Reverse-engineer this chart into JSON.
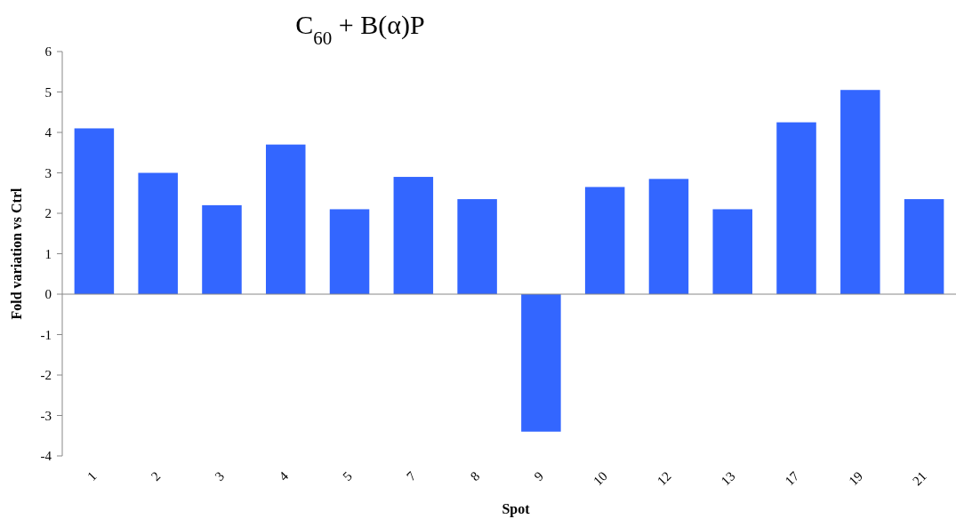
{
  "chart_data": {
    "type": "bar",
    "title": "C$_{60}$ + B(α)P",
    "xlabel": "Spot",
    "ylabel": "Fold variation vs Ctrl",
    "categories": [
      "1",
      "2",
      "3",
      "4",
      "5",
      "7",
      "8",
      "9",
      "10",
      "12",
      "13",
      "17",
      "19",
      "21"
    ],
    "values": [
      4.1,
      3.0,
      2.2,
      3.7,
      2.1,
      2.9,
      2.35,
      -3.4,
      2.65,
      2.85,
      2.1,
      4.25,
      5.05,
      2.35
    ],
    "color": "#3366ff",
    "ylim": [
      -4,
      6
    ],
    "yticks": [
      -4,
      -3,
      -2,
      -1,
      0,
      1,
      2,
      3,
      4,
      5,
      6
    ]
  }
}
